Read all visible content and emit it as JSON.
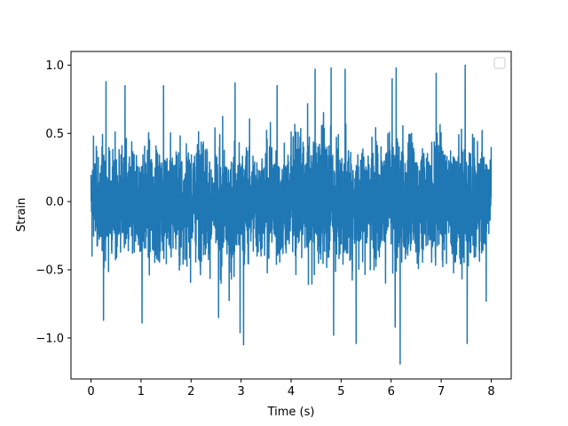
{
  "chart_data": {
    "type": "line",
    "title": "",
    "xlabel": "Time (s)",
    "ylabel": "Strain",
    "xlim": [
      -0.4,
      8.4
    ],
    "ylim": [
      -1.3,
      1.1
    ],
    "x_ticks": [
      0,
      1,
      2,
      3,
      4,
      5,
      6,
      7,
      8
    ],
    "x_tick_labels": [
      "0",
      "1",
      "2",
      "3",
      "4",
      "5",
      "6",
      "7",
      "8"
    ],
    "y_ticks": [
      -1.0,
      -0.5,
      0.0,
      0.5,
      1.0
    ],
    "y_tick_labels": [
      "−1.0",
      "−0.5",
      "0.0",
      "0.5",
      "1.0"
    ],
    "grid": false,
    "legend": {
      "placement": "top-right",
      "entries": []
    },
    "colors": {
      "series": "#1f77b4"
    },
    "series": [
      {
        "style": "dense noisy waveform, x from 0 to 8 s, sampled densely",
        "x_range": [
          0,
          8
        ],
        "envelope_upper": [
          [
            0.0,
            0.48
          ],
          [
            0.2,
            0.75
          ],
          [
            0.4,
            0.72
          ],
          [
            0.6,
            0.68
          ],
          [
            0.8,
            0.7
          ],
          [
            1.0,
            0.72
          ],
          [
            1.2,
            0.76
          ],
          [
            1.4,
            0.7
          ],
          [
            1.6,
            0.74
          ],
          [
            1.8,
            0.78
          ],
          [
            2.0,
            0.7
          ],
          [
            2.2,
            0.84
          ],
          [
            2.4,
            0.7
          ],
          [
            2.6,
            0.76
          ],
          [
            2.8,
            0.72
          ],
          [
            3.0,
            0.8
          ],
          [
            3.2,
            0.74
          ],
          [
            3.4,
            0.7
          ],
          [
            3.6,
            0.82
          ],
          [
            3.8,
            0.72
          ],
          [
            4.0,
            0.84
          ],
          [
            4.2,
            0.8
          ],
          [
            4.4,
            0.86
          ],
          [
            4.6,
            0.96
          ],
          [
            4.8,
            0.88
          ],
          [
            5.0,
            0.78
          ],
          [
            5.2,
            0.74
          ],
          [
            5.4,
            0.8
          ],
          [
            5.6,
            0.82
          ],
          [
            5.8,
            0.78
          ],
          [
            6.0,
            0.88
          ],
          [
            6.2,
            0.76
          ],
          [
            6.4,
            0.84
          ],
          [
            6.6,
            0.72
          ],
          [
            6.8,
            0.82
          ],
          [
            7.0,
            0.88
          ],
          [
            7.2,
            0.74
          ],
          [
            7.4,
            0.84
          ],
          [
            7.6,
            0.7
          ],
          [
            7.8,
            0.76
          ],
          [
            8.0,
            0.4
          ]
        ],
        "envelope_lower": [
          [
            0.0,
            -0.4
          ],
          [
            0.2,
            -0.78
          ],
          [
            0.4,
            -0.74
          ],
          [
            0.6,
            -0.72
          ],
          [
            0.8,
            -0.78
          ],
          [
            1.0,
            -0.72
          ],
          [
            1.2,
            -0.8
          ],
          [
            1.4,
            -0.72
          ],
          [
            1.6,
            -0.74
          ],
          [
            1.8,
            -0.78
          ],
          [
            2.0,
            -0.7
          ],
          [
            2.2,
            -0.76
          ],
          [
            2.4,
            -0.78
          ],
          [
            2.6,
            -0.82
          ],
          [
            2.8,
            -0.9
          ],
          [
            3.0,
            -0.8
          ],
          [
            3.2,
            -0.74
          ],
          [
            3.4,
            -0.72
          ],
          [
            3.6,
            -0.78
          ],
          [
            3.8,
            -0.82
          ],
          [
            4.0,
            -0.8
          ],
          [
            4.2,
            -0.74
          ],
          [
            4.4,
            -0.86
          ],
          [
            4.6,
            -0.88
          ],
          [
            4.8,
            -0.76
          ],
          [
            5.0,
            -0.84
          ],
          [
            5.2,
            -0.78
          ],
          [
            5.4,
            -0.8
          ],
          [
            5.6,
            -0.74
          ],
          [
            5.8,
            -0.78
          ],
          [
            6.0,
            -0.82
          ],
          [
            6.2,
            -0.86
          ],
          [
            6.4,
            -0.8
          ],
          [
            6.6,
            -0.76
          ],
          [
            6.8,
            -0.78
          ],
          [
            7.0,
            -0.8
          ],
          [
            7.2,
            -0.74
          ],
          [
            7.4,
            -0.84
          ],
          [
            7.6,
            -0.78
          ],
          [
            7.8,
            -0.74
          ],
          [
            8.0,
            -0.3
          ]
        ],
        "extremes": [
          {
            "x": 0.05,
            "y": 0.48
          },
          {
            "x": 0.02,
            "y": -0.4
          },
          {
            "x": 0.3,
            "y": 0.88
          },
          {
            "x": 0.25,
            "y": -0.87
          },
          {
            "x": 0.68,
            "y": 0.85
          },
          {
            "x": 1.02,
            "y": -0.89
          },
          {
            "x": 1.45,
            "y": 0.85
          },
          {
            "x": 2.55,
            "y": -0.85
          },
          {
            "x": 2.88,
            "y": 0.87
          },
          {
            "x": 3.05,
            "y": -1.05
          },
          {
            "x": 2.98,
            "y": -0.96
          },
          {
            "x": 3.72,
            "y": 0.85
          },
          {
            "x": 4.48,
            "y": 0.97
          },
          {
            "x": 4.8,
            "y": 0.98
          },
          {
            "x": 4.85,
            "y": -0.98
          },
          {
            "x": 5.08,
            "y": 0.97
          },
          {
            "x": 5.3,
            "y": -1.04
          },
          {
            "x": 6.02,
            "y": 0.9
          },
          {
            "x": 6.18,
            "y": -1.19
          },
          {
            "x": 6.08,
            "y": -0.92
          },
          {
            "x": 6.1,
            "y": 0.98
          },
          {
            "x": 6.9,
            "y": 0.94
          },
          {
            "x": 7.48,
            "y": 1.0
          },
          {
            "x": 7.52,
            "y": -1.04
          },
          {
            "x": 7.9,
            "y": -0.73
          },
          {
            "x": 8.0,
            "y": 0.4
          }
        ]
      }
    ]
  }
}
